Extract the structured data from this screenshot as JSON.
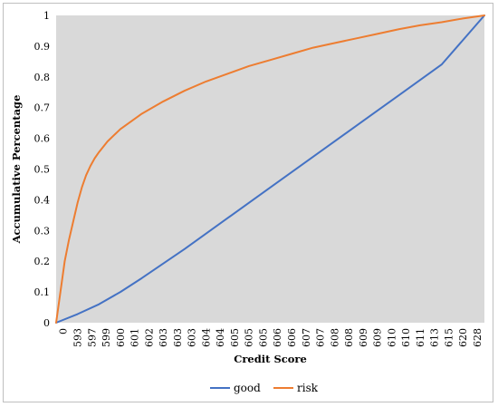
{
  "chart_data": {
    "type": "line",
    "title": "",
    "xlabel": "Credit Score",
    "ylabel": "Accumulative Percentage",
    "ylim": [
      0,
      1
    ],
    "y_ticks": [
      "0",
      "0.1",
      "0.2",
      "0.3",
      "0.4",
      "0.5",
      "0.6",
      "0.7",
      "0.8",
      "0.9",
      "1"
    ],
    "x_tick_labels": [
      "0",
      "593",
      "597",
      "599",
      "600",
      "601",
      "602",
      "603",
      "603",
      "603",
      "604",
      "604",
      "605",
      "605",
      "605",
      "606",
      "606",
      "607",
      "607",
      "608",
      "608",
      "609",
      "609",
      "610",
      "610",
      "611",
      "613",
      "615",
      "620",
      "628"
    ],
    "grid": false,
    "plot_background": "#d9d9d9",
    "legend_position": "bottom",
    "series": [
      {
        "name": "good",
        "color": "#4472c4",
        "x": [
          0,
          0.05,
          0.1,
          0.15,
          0.2,
          0.3,
          0.4,
          0.5,
          0.6,
          0.7,
          0.8,
          0.9,
          1.0
        ],
        "values": [
          0,
          0.028,
          0.06,
          0.1,
          0.145,
          0.24,
          0.34,
          0.44,
          0.54,
          0.64,
          0.74,
          0.84,
          1.0
        ]
      },
      {
        "name": "risk",
        "color": "#ed7d31",
        "x": [
          0,
          0.01,
          0.02,
          0.03,
          0.04,
          0.05,
          0.06,
          0.07,
          0.08,
          0.09,
          0.1,
          0.12,
          0.15,
          0.2,
          0.25,
          0.3,
          0.35,
          0.4,
          0.45,
          0.5,
          0.55,
          0.6,
          0.65,
          0.7,
          0.75,
          0.8,
          0.85,
          0.9,
          0.95,
          1.0
        ],
        "values": [
          0,
          0.1,
          0.2,
          0.27,
          0.33,
          0.39,
          0.44,
          0.48,
          0.51,
          0.535,
          0.555,
          0.59,
          0.63,
          0.68,
          0.72,
          0.755,
          0.785,
          0.81,
          0.835,
          0.855,
          0.875,
          0.895,
          0.91,
          0.925,
          0.94,
          0.955,
          0.968,
          0.978,
          0.99,
          1.0
        ]
      }
    ]
  }
}
